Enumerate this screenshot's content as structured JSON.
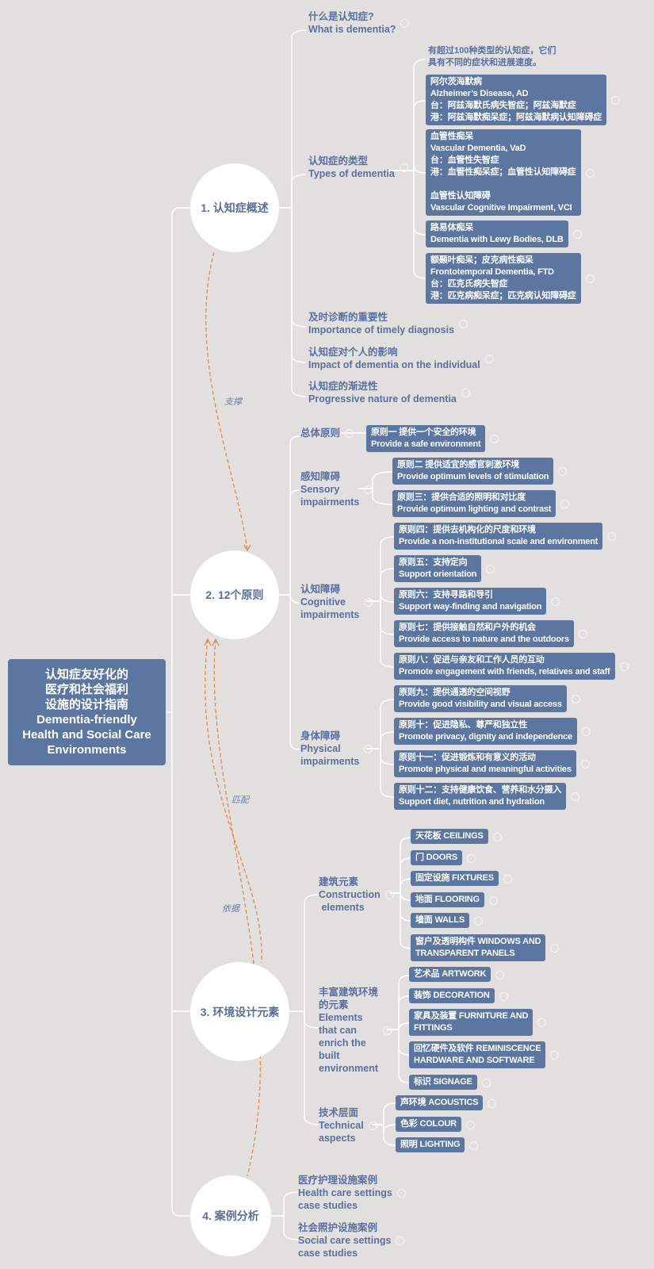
{
  "root": {
    "title": "认知症友好化的\n医疗和社会福利\n设施的设计指南\nDementia-friendly\nHealth and Social Care\nEnvironments"
  },
  "colors": {
    "background": "#e1e0de",
    "node_fill": "#5a76a1",
    "label_text": "#5b70a0",
    "relation_line": "#e8874a",
    "branch_line": "#ffffff"
  },
  "relations": [
    {
      "label": "支撑"
    },
    {
      "label": "匹配"
    },
    {
      "label": "依据"
    }
  ],
  "branches": [
    {
      "title": "1. 认知症概述",
      "children": [
        {
          "label": "什么是认知症?\nWhat is dementia?"
        },
        {
          "label": "认知症的类型\nTypes of dementia",
          "note": "有超过100种类型的认知症，它们\n具有不同的症状和进展速度。",
          "items": [
            "阿尔茨海默病\nAlzheimer’s Disease, AD\n台：阿兹海默氏病失智症；阿兹海默症\n港：阿兹海默痴呆症；阿兹海默病认知障碍症",
            "血管性痴呆\nVascular Dementia, VaD\n台：血管性失智症\n港：血管性痴呆症；血管性认知障碍症\n\n血管性认知障碍\nVascular Cognitive Impairment, VCI",
            "路易体痴呆\nDementia with Lewy Bodies, DLB",
            "额颞叶痴呆；皮克病性痴呆\nFrontotemporal Dementia, FTD\n台：匹克氏病失智症\n港：匹克病痴呆症；匹克病认知障碍症"
          ]
        },
        {
          "label": "及时诊断的重要性\nImportance of timely diagnosis"
        },
        {
          "label": "认知症对个人的影响\nImpact of dementia on the individual"
        },
        {
          "label": "认知症的渐进性\nProgressive nature of dementia"
        }
      ]
    },
    {
      "title": "2. 12个原则",
      "children": [
        {
          "label": "总体原则",
          "items": [
            "原则一 提供一个安全的环境\nProvide a safe environment"
          ]
        },
        {
          "label": "感知障碍\nSensory\nimpairments",
          "items": [
            "原则二 提供适宜的感官刺激环境\nProvide optimum levels of stimulation",
            "原则三：提供合适的照明和对比度\nProvide optimum lighting and contrast"
          ]
        },
        {
          "label": "认知障碍\nCognitive\nimpairments",
          "items": [
            "原则四：提供去机构化的尺度和环境\nProvide a non-institutional scale and environment",
            "原则五：支持定向\nSupport orientation",
            "原则六：支持寻路和导引\nSupport way-finding and navigation",
            "原则七：提供接触自然和户外的机会\nProvide access to nature and the outdoors",
            "原则八：促进与亲友和工作人员的互动\nPromote engagement with friends, relatives and staff"
          ]
        },
        {
          "label": "身体障碍\nPhysical\nimpairments",
          "items": [
            "原则九：提供通透的空间视野\nProvide good visibility and visual access",
            "原则十：促进隐私、尊严和独立性\nPromote privacy, dignity and independence",
            "原则十一：促进锻炼和有意义的活动\nPromote physical and meaningful activities",
            "原则十二：支持健康饮食、营养和水分摄入\nSupport diet, nutrition and hydration"
          ]
        }
      ]
    },
    {
      "title": "3. 环境设计元素",
      "children": [
        {
          "label": "建筑元素\nConstruction\n elements",
          "items": [
            "天花板 CEILINGS",
            "门 DOORS",
            "固定设施 FIXTURES",
            "地面 FLOORING",
            "墙面 WALLS",
            "窗户及透明构件 WINDOWS AND\nTRANSPARENT PANELS"
          ]
        },
        {
          "label": "丰富建筑环境\n的元素\nElements\nthat can\nenrich the\nbuilt\nenvironment",
          "items": [
            "艺术品 ARTWORK",
            "装饰 DECORATION",
            "家具及装置 FURNITURE AND\nFITTINGS",
            "回忆硬件及软件 REMINISCENCE\nHARDWARE AND SOFTWARE",
            "标识 SIGNAGE"
          ]
        },
        {
          "label": "技术层面\nTechnical\naspects",
          "items": [
            "声环境 ACOUSTICS",
            "色彩 COLOUR",
            "照明 LIGHTING"
          ]
        }
      ]
    },
    {
      "title": "4. 案例分析",
      "children": [
        {
          "label": "医疗护理设施案例\nHealth care settings\ncase studies"
        },
        {
          "label": "社会照护设施案例\nSocial care settings\ncase studies"
        }
      ]
    }
  ]
}
